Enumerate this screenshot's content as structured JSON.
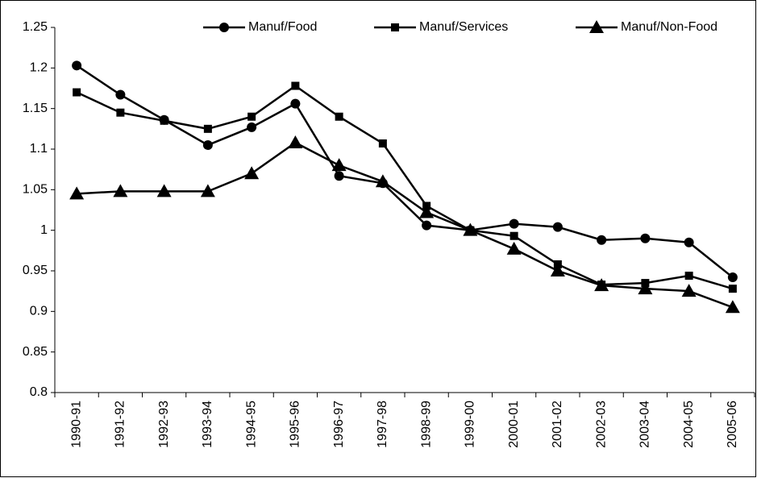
{
  "chart_data": {
    "type": "line",
    "categories": [
      "1990-91",
      "1991-92",
      "1992-93",
      "1993-94",
      "1994-95",
      "1995-96",
      "1996-97",
      "1997-98",
      "1998-99",
      "1999-00",
      "2000-01",
      "2001-02",
      "2002-03",
      "2003-04",
      "2004-05",
      "2005-06"
    ],
    "series": [
      {
        "name": "Manuf/Food",
        "color": "#000000",
        "marker": "circle",
        "values": [
          1.203,
          1.167,
          1.136,
          1.105,
          1.127,
          1.156,
          1.067,
          1.058,
          1.006,
          1.0,
          1.008,
          1.004,
          0.988,
          0.99,
          0.985,
          0.942
        ]
      },
      {
        "name": "Manuf/Services",
        "color": "#000000",
        "marker": "square",
        "values": [
          1.17,
          1.145,
          1.135,
          1.125,
          1.14,
          1.178,
          1.14,
          1.107,
          1.03,
          1.0,
          0.993,
          0.958,
          0.933,
          0.935,
          0.944,
          0.928
        ]
      },
      {
        "name": "Manuf/Non-Food",
        "color": "#000000",
        "marker": "triangle",
        "values": [
          1.045,
          1.048,
          1.048,
          1.048,
          1.07,
          1.108,
          1.08,
          1.06,
          1.022,
          1.0,
          0.977,
          0.95,
          0.932,
          0.928,
          0.925,
          0.905
        ]
      }
    ],
    "ylim": [
      0.8,
      1.25
    ],
    "yticks": [
      0.8,
      0.85,
      0.9,
      0.95,
      1,
      1.05,
      1.1,
      1.15,
      1.2,
      1.25
    ],
    "grid": false,
    "legend": "top-right"
  }
}
